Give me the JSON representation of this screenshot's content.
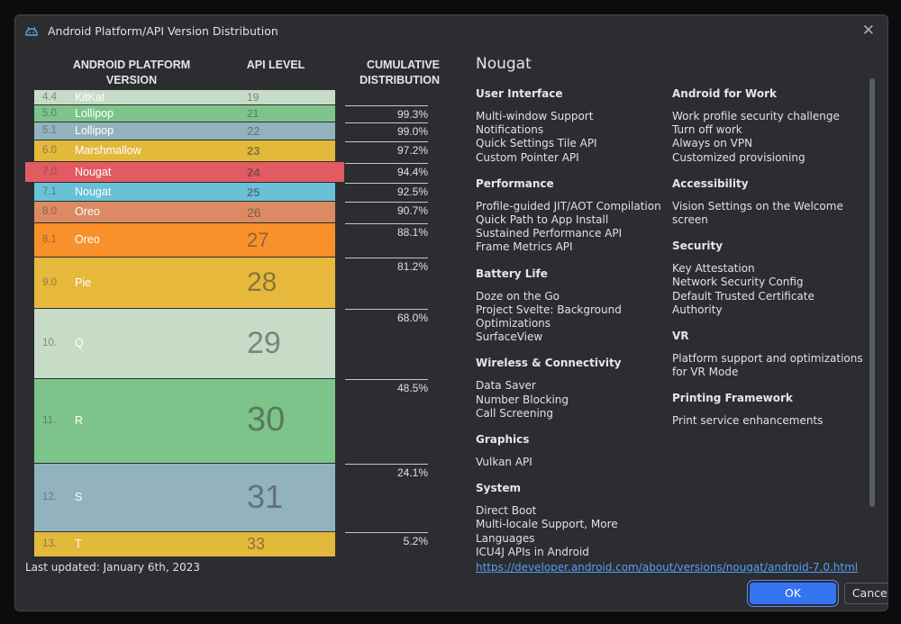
{
  "window": {
    "title": "Android Platform/API Version Distribution"
  },
  "table": {
    "headers": {
      "platform": "ANDROID PLATFORM VERSION",
      "api": "API LEVEL",
      "cumulative": "CUMULATIVE DISTRIBUTION"
    },
    "rows": [
      {
        "version": "4.4",
        "name": "KitKat",
        "api": "19",
        "cumulative": "",
        "color": "#c7dcc7"
      },
      {
        "version": "5.0",
        "name": "Lollipop",
        "api": "21",
        "cumulative": "99.3%",
        "color": "#7dc48a"
      },
      {
        "version": "5.1",
        "name": "Lollipop",
        "api": "22",
        "cumulative": "99.0%",
        "color": "#92b3bd"
      },
      {
        "version": "6.0",
        "name": "Marshmallow",
        "api": "23",
        "cumulative": "97.2%",
        "color": "#e3b93c"
      },
      {
        "version": "7.0",
        "name": "Nougat",
        "api": "24",
        "cumulative": "94.4%",
        "color": "#e25b62"
      },
      {
        "version": "7.1",
        "name": "Nougat",
        "api": "25",
        "cumulative": "92.5%",
        "color": "#69c1d6"
      },
      {
        "version": "8.0",
        "name": "Oreo",
        "api": "26",
        "cumulative": "90.7%",
        "color": "#db8a63"
      },
      {
        "version": "8.1",
        "name": "Oreo",
        "api": "27",
        "cumulative": "88.1%",
        "color": "#f8912c"
      },
      {
        "version": "9.0",
        "name": "Pie",
        "api": "28",
        "cumulative": "81.2%",
        "color": "#e6b93c"
      },
      {
        "version": "10.",
        "name": "Q",
        "api": "29",
        "cumulative": "68.0%",
        "color": "#c7dcc7"
      },
      {
        "version": "11.",
        "name": "R",
        "api": "30",
        "cumulative": "48.5%",
        "color": "#7dc48a"
      },
      {
        "version": "12.",
        "name": "S",
        "api": "31",
        "cumulative": "24.1%",
        "color": "#92b3bd"
      },
      {
        "version": "13.",
        "name": "T",
        "api": "33",
        "cumulative": "5.2%",
        "color": "#e3b93c"
      }
    ],
    "last_updated": "Last updated: January 6th, 2023"
  },
  "details": {
    "title": "Nougat",
    "left_sections": [
      {
        "heading": "User Interface",
        "items": [
          "Multi-window Support",
          "Notifications",
          "Quick Settings Tile API",
          "Custom Pointer API"
        ]
      },
      {
        "heading": "Performance",
        "items": [
          "Profile-guided JIT/AOT Compilation",
          "Quick Path to App Install",
          "Sustained Performance API",
          "Frame Metrics API"
        ]
      },
      {
        "heading": "Battery Life",
        "items": [
          "Doze on the Go",
          "Project Svelte: Background",
          "Optimizations",
          "SurfaceView"
        ]
      },
      {
        "heading": "Wireless & Connectivity",
        "items": [
          "Data Saver",
          "Number Blocking",
          "Call Screening"
        ]
      },
      {
        "heading": "Graphics",
        "items": [
          "Vulkan API"
        ]
      },
      {
        "heading": "System",
        "items": [
          "Direct Boot",
          "Multi-locale Support, More",
          "Languages",
          "ICU4J APIs in Android"
        ]
      }
    ],
    "right_sections": [
      {
        "heading": "Android for Work",
        "items": [
          "Work profile security challenge",
          "Turn off work",
          "Always on VPN",
          "Customized provisioning"
        ]
      },
      {
        "heading": "Accessibility",
        "items": [
          "Vision Settings on the Welcome",
          "screen"
        ]
      },
      {
        "heading": "Security",
        "items": [
          "Key Attestation",
          "Network Security Config",
          "Default Trusted Certificate Authority"
        ]
      },
      {
        "heading": "VR",
        "items": [
          "Platform support and optimizations",
          "for VR Mode"
        ]
      },
      {
        "heading": "Printing Framework",
        "items": [
          "Print service enhancements"
        ]
      }
    ],
    "link": "https://developer.android.com/about/versions/nougat/android-7.0.html"
  },
  "buttons": {
    "ok": "OK",
    "cancel": "Cancel"
  },
  "icons": {
    "app": "android-icon",
    "close": "close-icon"
  }
}
